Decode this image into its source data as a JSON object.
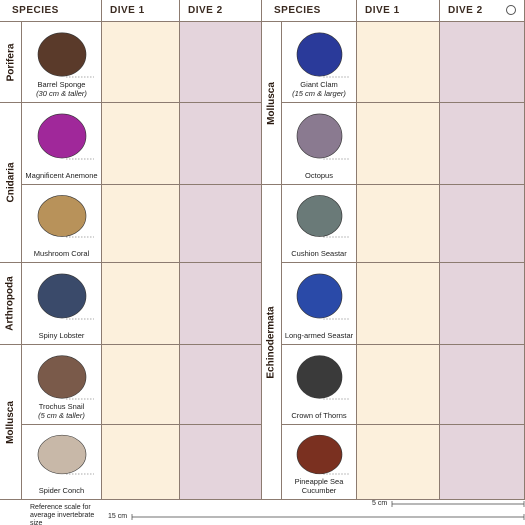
{
  "left": {
    "header": {
      "species": "SPECIES",
      "dive1": "DIVE 1",
      "dive2": "DIVE 2"
    },
    "groups": [
      {
        "phylum": "Porifera",
        "species": [
          {
            "name": "Barrel Sponge",
            "note": "(30 cm & taller)"
          }
        ]
      },
      {
        "phylum": "Cnidaria",
        "species": [
          {
            "name": "Magnificent Anemone"
          },
          {
            "name": "Mushroom Coral"
          }
        ]
      },
      {
        "phylum": "Arthropoda",
        "species": [
          {
            "name": "Spiny Lobster"
          }
        ]
      },
      {
        "phylum": "Mollusca",
        "species": [
          {
            "name": "Trochus Snail",
            "note": "(5 cm & taller)"
          },
          {
            "name": "Spider Conch"
          }
        ]
      }
    ]
  },
  "right": {
    "header": {
      "species": "SPECIES",
      "dive1": "DIVE 1",
      "dive2": "DIVE 2"
    },
    "groups": [
      {
        "phylum": "Mollusca",
        "species": [
          {
            "name": "Giant Clam",
            "note": "(15 cm & larger)"
          },
          {
            "name": "Octopus"
          }
        ]
      },
      {
        "phylum": "Echinodermata",
        "species": [
          {
            "name": "Cushion Seastar"
          },
          {
            "name": "Long-armed Seastar"
          },
          {
            "name": "Crown of Thorns"
          },
          {
            "name": "Pineapple Sea Cucumber"
          }
        ]
      }
    ]
  },
  "footer": {
    "reference": "Reference scale for average invertebrate size",
    "scale_large": "15 cm",
    "scale_small": "5 cm"
  }
}
